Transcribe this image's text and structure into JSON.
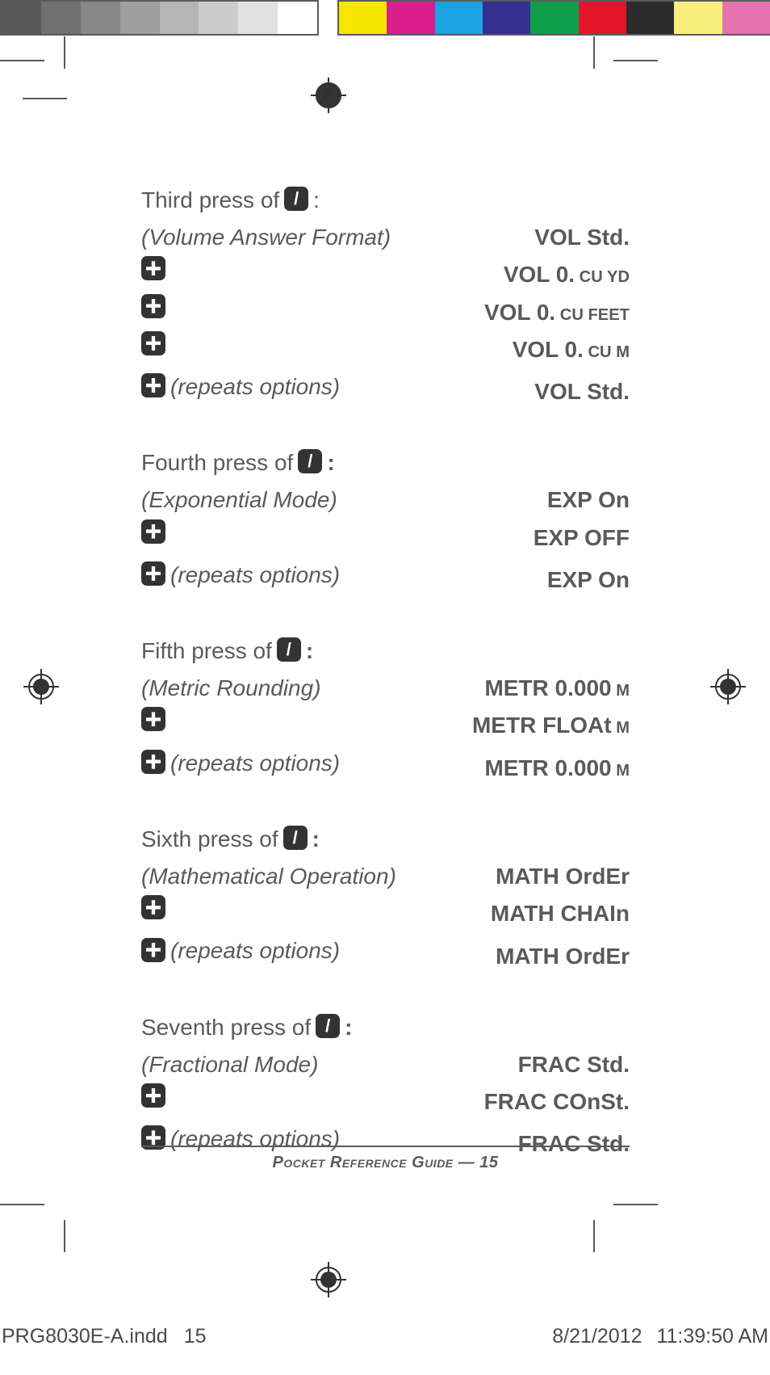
{
  "grayBar": [
    "#595959",
    "#707070",
    "#878787",
    "#9e9e9e",
    "#b5b5b5",
    "#cbcbcb",
    "#e2e2e2",
    "#ffffff"
  ],
  "colorBar": [
    "#f7e700",
    "#d91e8c",
    "#1ba3e1",
    "#352f91",
    "#0e9e4a",
    "#e4152b",
    "#2b2b2b",
    "#f8f07a",
    "#e573b0"
  ],
  "sections": [
    {
      "heading_prefix": "Third press of ",
      "heading_suffix": ":",
      "heading_italic": "(Volume Answer Format)",
      "heading_right": "VOL Std.",
      "rows": [
        {
          "icon": "plus",
          "note": "",
          "right": "VOL 0.",
          "rightSmall": " CU YD"
        },
        {
          "icon": "plus",
          "note": "",
          "right": "VOL 0.",
          "rightSmall": " CU FEET"
        },
        {
          "icon": "plus",
          "note": "",
          "right": "VOL 0.",
          "rightSmall": " CU M"
        },
        {
          "icon": "plus",
          "note": "(repeats options)",
          "right": "VOL Std.",
          "rightSmall": ""
        }
      ]
    },
    {
      "heading_prefix": "Fourth press of ",
      "heading_suffix": ":",
      "heading_italic": "(Exponential Mode)",
      "heading_right": "EXP On",
      "rows": [
        {
          "icon": "plus",
          "note": "",
          "right": "EXP OFF",
          "rightSmall": ""
        },
        {
          "icon": "plus",
          "note": "(repeats options)",
          "right": "EXP On",
          "rightSmall": ""
        }
      ]
    },
    {
      "heading_prefix": "Fifth press of ",
      "heading_suffix": ":",
      "heading_italic": "(Metric Rounding)",
      "heading_right": "METR 0.000",
      "heading_right_small": " M",
      "rows": [
        {
          "icon": "plus",
          "note": "",
          "right": "METR FLOAt",
          "rightSmall": " M"
        },
        {
          "icon": "plus",
          "note": "(repeats options)",
          "right": "METR 0.000",
          "rightSmall": " M"
        }
      ]
    },
    {
      "heading_prefix": "Sixth press of ",
      "heading_suffix": ":",
      "heading_italic": "(Mathematical Operation)",
      "heading_right": "MATH OrdEr",
      "rows": [
        {
          "icon": "plus",
          "note": "",
          "right": "MATH CHAIn",
          "rightSmall": ""
        },
        {
          "icon": "plus",
          "note": "(repeats options)",
          "right": "MATH OrdEr",
          "rightSmall": ""
        }
      ]
    },
    {
      "heading_prefix": "Seventh press of ",
      "heading_suffix": ":",
      "heading_italic": "(Fractional Mode)",
      "heading_right": "FRAC Std.",
      "rows": [
        {
          "icon": "plus",
          "note": "",
          "right": "FRAC COnSt.",
          "rightSmall": ""
        },
        {
          "icon": "plus",
          "note": "(repeats options)",
          "right": "FRAC Std.",
          "rightSmall": ""
        }
      ]
    }
  ],
  "footer": "Pocket Reference Guide — 15",
  "slug": {
    "file": "PRG8030E-A.indd",
    "page": "15",
    "date": "8/21/2012",
    "time": "11:39:50 AM"
  }
}
